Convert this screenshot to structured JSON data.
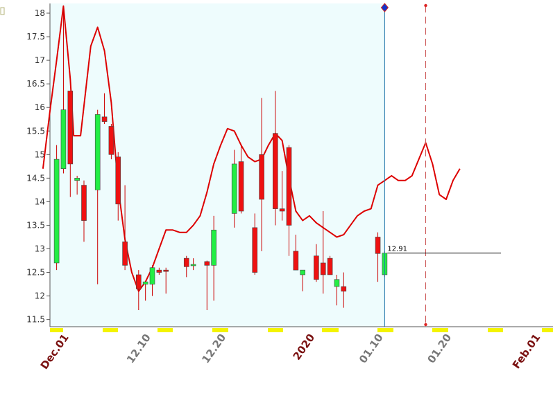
{
  "chart_data": {
    "type": "candlestick",
    "y_ticks": [
      "18",
      "17.5",
      "17",
      "16.5",
      "16",
      "15.5",
      "15",
      "14.5",
      "14",
      "13.5",
      "13",
      "12.5",
      "12",
      "11.5"
    ],
    "ylim": [
      11.3,
      18.2
    ],
    "x_ticks": [
      {
        "label": "Dec.01",
        "pos": 4.0,
        "major": true
      },
      {
        "label": "12.10",
        "pos": 16.0,
        "major": false
      },
      {
        "label": "12.20",
        "pos": 27.0,
        "major": false
      },
      {
        "label": "2020",
        "pos": 40.0,
        "major": true
      },
      {
        "label": "01.10",
        "pos": 50.0,
        "major": false
      },
      {
        "label": "01.20",
        "pos": 60.0,
        "major": false
      },
      {
        "label": "Feb.01",
        "pos": 73.0,
        "major": true
      }
    ],
    "candles": [
      {
        "x": 3,
        "o": 12.7,
        "h": 15.2,
        "l": 12.55,
        "c": 14.9
      },
      {
        "x": 4,
        "o": 14.7,
        "h": 18.1,
        "l": 14.6,
        "c": 15.95
      },
      {
        "x": 5,
        "o": 16.35,
        "h": 16.35,
        "l": 14.1,
        "c": 14.8
      },
      {
        "x": 6,
        "o": 14.45,
        "h": 14.55,
        "l": 14.15,
        "c": 14.5
      },
      {
        "x": 7,
        "o": 14.35,
        "h": 14.45,
        "l": 13.15,
        "c": 13.6
      },
      {
        "x": 9,
        "o": 14.25,
        "h": 15.95,
        "l": 12.25,
        "c": 15.85
      },
      {
        "x": 10,
        "o": 15.8,
        "h": 16.3,
        "l": 15.65,
        "c": 15.7
      },
      {
        "x": 11,
        "o": 15.6,
        "h": 15.65,
        "l": 14.9,
        "c": 15.0
      },
      {
        "x": 12,
        "o": 14.95,
        "h": 15.05,
        "l": 13.6,
        "c": 13.95
      },
      {
        "x": 13,
        "o": 13.15,
        "h": 14.35,
        "l": 12.55,
        "c": 12.65
      },
      {
        "x": 15,
        "o": 12.45,
        "h": 12.55,
        "l": 11.7,
        "c": 12.15
      },
      {
        "x": 16,
        "o": 12.25,
        "h": 12.3,
        "l": 11.9,
        "c": 12.3
      },
      {
        "x": 17,
        "o": 12.25,
        "h": 12.65,
        "l": 12.0,
        "c": 12.6
      },
      {
        "x": 18,
        "o": 12.55,
        "h": 12.6,
        "l": 12.45,
        "c": 12.5
      },
      {
        "x": 19,
        "o": 12.55,
        "h": 12.6,
        "l": 12.05,
        "c": 12.52
      },
      {
        "x": 22,
        "o": 12.8,
        "h": 12.85,
        "l": 12.4,
        "c": 12.62
      },
      {
        "x": 23,
        "o": 12.67,
        "h": 12.8,
        "l": 12.55,
        "c": 12.67
      },
      {
        "x": 25,
        "o": 12.73,
        "h": 12.75,
        "l": 11.7,
        "c": 12.65
      },
      {
        "x": 26,
        "o": 12.65,
        "h": 13.7,
        "l": 11.9,
        "c": 13.4
      },
      {
        "x": 29,
        "o": 13.75,
        "h": 15.1,
        "l": 13.45,
        "c": 14.8
      },
      {
        "x": 30,
        "o": 14.85,
        "h": 15.2,
        "l": 13.75,
        "c": 13.8
      },
      {
        "x": 32,
        "o": 13.45,
        "h": 13.75,
        "l": 12.45,
        "c": 12.5
      },
      {
        "x": 33,
        "o": 15.0,
        "h": 16.2,
        "l": 12.95,
        "c": 14.05
      },
      {
        "x": 35,
        "o": 15.45,
        "h": 16.35,
        "l": 13.5,
        "c": 13.85
      },
      {
        "x": 36,
        "o": 13.85,
        "h": 14.65,
        "l": 13.6,
        "c": 13.8
      },
      {
        "x": 37,
        "o": 15.15,
        "h": 15.2,
        "l": 12.85,
        "c": 13.5
      },
      {
        "x": 38,
        "o": 12.95,
        "h": 13.3,
        "l": 12.55,
        "c": 12.55
      },
      {
        "x": 39,
        "o": 12.45,
        "h": 12.55,
        "l": 12.1,
        "c": 12.55
      },
      {
        "x": 41,
        "o": 12.85,
        "h": 13.1,
        "l": 12.3,
        "c": 12.35
      },
      {
        "x": 42,
        "o": 12.7,
        "h": 13.8,
        "l": 12.05,
        "c": 12.45
      },
      {
        "x": 43,
        "o": 12.8,
        "h": 12.85,
        "l": 12.45,
        "c": 12.45
      },
      {
        "x": 44,
        "o": 12.2,
        "h": 12.45,
        "l": 11.8,
        "c": 12.35
      },
      {
        "x": 45,
        "o": 12.2,
        "h": 12.5,
        "l": 11.75,
        "c": 12.1
      },
      {
        "x": 50,
        "o": 13.25,
        "h": 13.35,
        "l": 12.3,
        "c": 12.9
      },
      {
        "x": 51,
        "o": 12.45,
        "h": 12.95,
        "l": 12.4,
        "c": 12.91
      }
    ],
    "moving_average": [
      {
        "x": 1.0,
        "y": 14.7
      },
      {
        "x": 2.0,
        "y": 15.9
      },
      {
        "x": 3.0,
        "y": 17.0
      },
      {
        "x": 4.0,
        "y": 18.15
      },
      {
        "x": 5.0,
        "y": 16.6
      },
      {
        "x": 5.5,
        "y": 15.4
      },
      {
        "x": 6.5,
        "y": 15.4
      },
      {
        "x": 8.0,
        "y": 17.3
      },
      {
        "x": 9.0,
        "y": 17.7
      },
      {
        "x": 10.0,
        "y": 17.2
      },
      {
        "x": 11.0,
        "y": 16.1
      },
      {
        "x": 12.0,
        "y": 14.3
      },
      {
        "x": 13.0,
        "y": 13.2
      },
      {
        "x": 14.0,
        "y": 12.5
      },
      {
        "x": 15.0,
        "y": 12.1
      },
      {
        "x": 16.0,
        "y": 12.3
      },
      {
        "x": 17.0,
        "y": 12.6
      },
      {
        "x": 18.0,
        "y": 13.0
      },
      {
        "x": 19.0,
        "y": 13.4
      },
      {
        "x": 20.0,
        "y": 13.4
      },
      {
        "x": 21.0,
        "y": 13.35
      },
      {
        "x": 22.0,
        "y": 13.35
      },
      {
        "x": 23.0,
        "y": 13.5
      },
      {
        "x": 24.0,
        "y": 13.7
      },
      {
        "x": 25.0,
        "y": 14.2
      },
      {
        "x": 26.0,
        "y": 14.8
      },
      {
        "x": 27.0,
        "y": 15.2
      },
      {
        "x": 28.0,
        "y": 15.55
      },
      {
        "x": 29.0,
        "y": 15.5
      },
      {
        "x": 30.0,
        "y": 15.2
      },
      {
        "x": 31.0,
        "y": 14.95
      },
      {
        "x": 32.0,
        "y": 14.85
      },
      {
        "x": 33.0,
        "y": 14.9
      },
      {
        "x": 34.0,
        "y": 15.2
      },
      {
        "x": 35.0,
        "y": 15.45
      },
      {
        "x": 36.0,
        "y": 15.3
      },
      {
        "x": 37.0,
        "y": 14.5
      },
      {
        "x": 38.0,
        "y": 13.8
      },
      {
        "x": 39.0,
        "y": 13.6
      },
      {
        "x": 40.0,
        "y": 13.7
      },
      {
        "x": 41.0,
        "y": 13.55
      },
      {
        "x": 42.0,
        "y": 13.45
      },
      {
        "x": 43.0,
        "y": 13.35
      },
      {
        "x": 44.0,
        "y": 13.25
      },
      {
        "x": 45.0,
        "y": 13.3
      },
      {
        "x": 46.0,
        "y": 13.5
      },
      {
        "x": 47.0,
        "y": 13.7
      },
      {
        "x": 48.0,
        "y": 13.8
      },
      {
        "x": 49.0,
        "y": 13.85
      },
      {
        "x": 50.0,
        "y": 14.35
      },
      {
        "x": 51.0,
        "y": 14.45
      },
      {
        "x": 52.0,
        "y": 14.55
      },
      {
        "x": 53.0,
        "y": 14.45
      },
      {
        "x": 54.0,
        "y": 14.45
      },
      {
        "x": 55.0,
        "y": 14.55
      },
      {
        "x": 56.0,
        "y": 14.9
      },
      {
        "x": 57.0,
        "y": 15.25
      },
      {
        "x": 58.0,
        "y": 14.8
      },
      {
        "x": 59.0,
        "y": 14.15
      },
      {
        "x": 60.0,
        "y": 14.05
      },
      {
        "x": 61.0,
        "y": 14.45
      },
      {
        "x": 62.0,
        "y": 14.7
      }
    ],
    "last_price": "12.91",
    "last_price_value": 12.91,
    "current_x": 51.0,
    "forecast_x": 57.0,
    "grid": false,
    "colors": {
      "up": "#22ee44",
      "down": "#ee1111",
      "wick": "#cc0000",
      "ma_line": "#dd0000",
      "past_bg": "#eefcfd",
      "current_line": "#2277aa",
      "marker": "#1133cc",
      "tick_major": "#7a1010",
      "tick_minor": "#777777",
      "day_marker": "#f4f400"
    }
  }
}
